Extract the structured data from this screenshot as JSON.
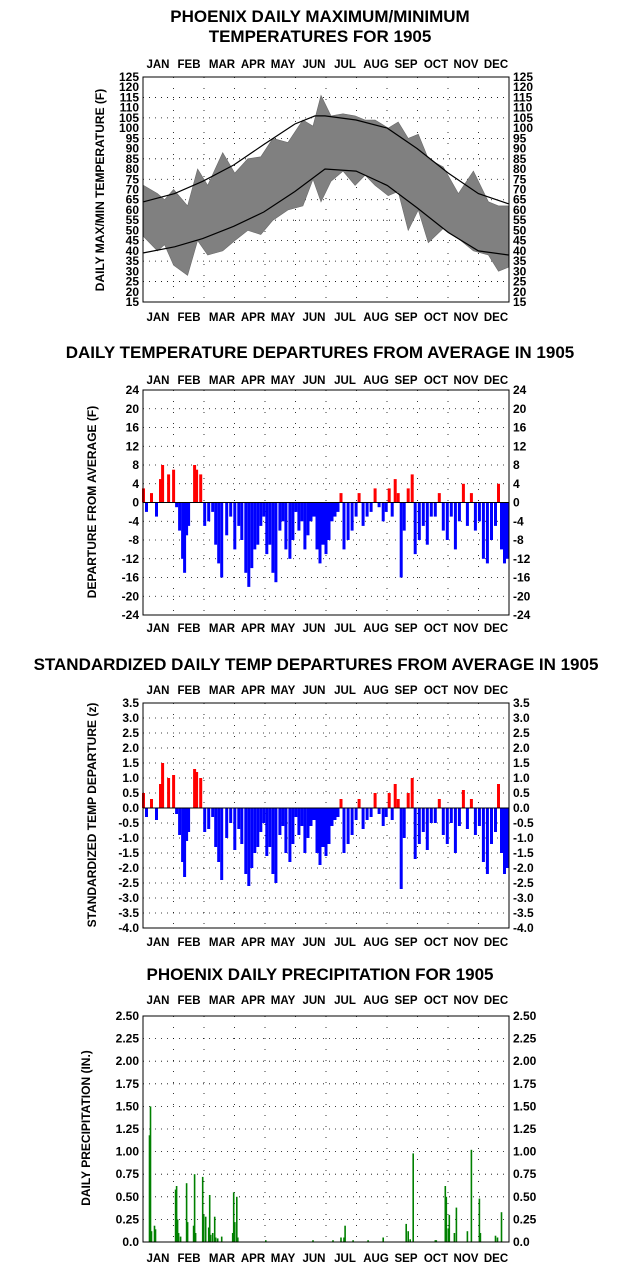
{
  "months": [
    "JAN",
    "FEB",
    "MAR",
    "APR",
    "MAY",
    "JUN",
    "JUL",
    "AUG",
    "SEP",
    "OCT",
    "NOV",
    "DEC"
  ],
  "chart_data": [
    {
      "type": "area",
      "title_lines": [
        "PHOENIX DAILY MAXIMUM/MINIMUM",
        "TEMPERATURES FOR 1905"
      ],
      "ylabel": "DAILY MAX/MIN TEMPERATURE (F)",
      "ylim": [
        15,
        125
      ],
      "yticks": [
        "15",
        "20",
        "25",
        "30",
        "35",
        "40",
        "45",
        "50",
        "55",
        "60",
        "65",
        "70",
        "75",
        "80",
        "85",
        "90",
        "95",
        "100",
        "105",
        "110",
        "115",
        "120",
        "125"
      ],
      "grid": "dotted",
      "series": [
        {
          "role": "observed_max",
          "color": "#808080",
          "x": [
            1,
            15,
            22,
            31,
            45,
            55,
            65,
            80,
            92,
            105,
            118,
            130,
            145,
            160,
            170,
            178,
            188,
            200,
            212,
            222,
            232,
            245,
            255,
            265,
            275,
            285,
            300,
            315,
            330,
            345,
            355,
            365
          ],
          "values": [
            72,
            68,
            65,
            70,
            62,
            80,
            72,
            88,
            78,
            85,
            86,
            95,
            93,
            104,
            101,
            116,
            106,
            107,
            106,
            104,
            104,
            100,
            103,
            95,
            97,
            85,
            81,
            68,
            79,
            64,
            62,
            62
          ]
        },
        {
          "role": "observed_min",
          "color": "#808080",
          "x": [
            1,
            15,
            22,
            31,
            45,
            55,
            65,
            80,
            92,
            105,
            118,
            130,
            145,
            160,
            170,
            178,
            188,
            200,
            212,
            222,
            232,
            245,
            255,
            265,
            275,
            285,
            300,
            315,
            330,
            345,
            355,
            365
          ],
          "values": [
            47,
            40,
            43,
            33,
            28,
            45,
            38,
            40,
            45,
            50,
            48,
            55,
            60,
            62,
            75,
            64,
            74,
            79,
            72,
            77,
            72,
            67,
            69,
            50,
            60,
            44,
            51,
            46,
            40,
            38,
            30,
            32
          ]
        },
        {
          "role": "normal_max",
          "color": "#000000",
          "x": [
            1,
            32,
            60,
            91,
            121,
            152,
            172,
            182,
            213,
            244,
            274,
            305,
            335,
            365
          ],
          "values": [
            64,
            68,
            74,
            82,
            92,
            102,
            106,
            106,
            104,
            100,
            90,
            78,
            68,
            63
          ]
        },
        {
          "role": "normal_min",
          "color": "#000000",
          "x": [
            1,
            32,
            60,
            91,
            121,
            152,
            182,
            213,
            244,
            274,
            305,
            335,
            365
          ],
          "values": [
            39,
            42,
            46,
            52,
            59,
            69,
            80,
            79,
            72,
            61,
            49,
            40,
            38
          ]
        }
      ]
    },
    {
      "type": "bar",
      "title_lines": [
        "DAILY TEMPERATURE DEPARTURES FROM AVERAGE IN 1905"
      ],
      "ylabel": "DEPARTURE FROM AVERAGE (F)",
      "ylim": [
        -24,
        24
      ],
      "yticks": [
        "-24",
        "-20",
        "-16",
        "-12",
        "-8",
        "-4",
        "0",
        "4",
        "8",
        "12",
        "16",
        "20",
        "24"
      ],
      "colors": {
        "positive": "#ff0000",
        "negative": "#0000ff"
      },
      "grid": "dotted",
      "x": [
        1,
        4,
        9,
        14,
        18,
        20,
        26,
        31,
        34,
        37,
        40,
        42,
        44,
        46,
        52,
        54,
        58,
        62,
        66,
        70,
        73,
        76,
        79,
        84,
        88,
        92,
        96,
        99,
        103,
        106,
        109,
        112,
        115,
        118,
        121,
        124,
        127,
        130,
        133,
        137,
        140,
        143,
        147,
        150,
        153,
        156,
        159,
        162,
        165,
        168,
        171,
        174,
        177,
        180,
        183,
        186,
        189,
        192,
        195,
        198,
        201,
        205,
        209,
        213,
        216,
        220,
        224,
        228,
        232,
        236,
        240,
        243,
        246,
        249,
        252,
        255,
        258,
        261,
        265,
        269,
        272,
        276,
        280,
        284,
        288,
        292,
        296,
        300,
        304,
        308,
        312,
        316,
        320,
        324,
        328,
        332,
        336,
        340,
        344,
        348,
        352,
        355,
        358,
        361,
        364
      ],
      "values": [
        3,
        -2,
        2,
        -3,
        5,
        8,
        6,
        7,
        -1,
        -6,
        -12,
        -15,
        -7,
        -5,
        8,
        7,
        6,
        -5,
        -4,
        -2,
        -9,
        -13,
        -16,
        -7,
        -3,
        -10,
        -5,
        -8,
        -15,
        -18,
        -14,
        -10,
        -9,
        -5,
        -3,
        -11,
        -9,
        -15,
        -17,
        -6,
        -4,
        -10,
        -12,
        -8,
        -2,
        -6,
        -4,
        -10,
        -7,
        -4,
        -3,
        -10,
        -13,
        -9,
        -11,
        -8,
        -4,
        -3,
        -2,
        2,
        -10,
        -8,
        -6,
        -3,
        2,
        -5,
        -3,
        -2,
        3,
        -1,
        -4,
        -2,
        3,
        -3,
        5,
        2,
        -16,
        -6,
        3,
        6,
        -11,
        -8,
        -5,
        -9,
        -3,
        -3,
        2,
        -6,
        -8,
        -3,
        -10,
        -4,
        4,
        -5,
        2,
        -6,
        -4,
        -12,
        -13,
        -8,
        -5,
        4,
        -10,
        -13,
        -12
      ]
    },
    {
      "type": "bar",
      "title_lines": [
        "STANDARDIZED DAILY TEMP DEPARTURES FROM AVERAGE IN 1905"
      ],
      "ylabel": "STANDARDIZED TEMP DEPARTURE (z)",
      "ylim": [
        -4.0,
        3.5
      ],
      "yticks": [
        "-4.0",
        "-3.5",
        "-3.0",
        "-2.5",
        "-2.0",
        "-1.5",
        "-1.0",
        "-0.5",
        "0.0",
        "0.5",
        "1.0",
        "1.5",
        "2.0",
        "2.5",
        "3.0",
        "3.5"
      ],
      "colors": {
        "positive": "#ff0000",
        "negative": "#0000ff"
      },
      "grid": "dotted",
      "x": [
        1,
        4,
        9,
        14,
        18,
        20,
        26,
        31,
        34,
        37,
        40,
        42,
        44,
        46,
        52,
        54,
        58,
        62,
        66,
        70,
        73,
        76,
        79,
        84,
        88,
        92,
        96,
        99,
        103,
        106,
        109,
        112,
        115,
        118,
        121,
        124,
        127,
        130,
        133,
        137,
        140,
        143,
        147,
        150,
        153,
        156,
        159,
        162,
        165,
        168,
        171,
        174,
        177,
        180,
        183,
        186,
        189,
        192,
        195,
        198,
        201,
        205,
        209,
        213,
        216,
        220,
        224,
        228,
        232,
        236,
        240,
        243,
        246,
        249,
        252,
        255,
        258,
        261,
        265,
        269,
        272,
        276,
        280,
        284,
        288,
        292,
        296,
        300,
        304,
        308,
        312,
        316,
        320,
        324,
        328,
        332,
        336,
        340,
        344,
        348,
        352,
        355,
        358,
        361,
        364
      ],
      "values": [
        0.5,
        -0.3,
        0.3,
        -0.4,
        0.8,
        1.5,
        1.0,
        1.1,
        -0.2,
        -0.9,
        -1.8,
        -2.3,
        -1.1,
        -0.8,
        1.3,
        1.2,
        1.0,
        -0.8,
        -0.7,
        -0.3,
        -1.3,
        -1.8,
        -2.4,
        -1.0,
        -0.5,
        -1.4,
        -0.7,
        -1.2,
        -2.2,
        -2.6,
        -2.0,
        -1.5,
        -1.3,
        -0.8,
        -0.5,
        -1.6,
        -1.3,
        -2.2,
        -2.5,
        -0.9,
        -0.6,
        -1.5,
        -1.8,
        -1.2,
        -0.3,
        -0.9,
        -0.6,
        -1.5,
        -1.0,
        -0.6,
        -0.4,
        -1.5,
        -1.9,
        -1.3,
        -1.6,
        -1.2,
        -0.6,
        -0.4,
        -0.3,
        0.3,
        -1.5,
        -1.2,
        -0.9,
        -0.4,
        0.3,
        -0.7,
        -0.4,
        -0.3,
        0.5,
        -0.2,
        -0.6,
        -0.3,
        0.5,
        -0.4,
        0.8,
        0.3,
        -2.7,
        -1.0,
        0.5,
        1.0,
        -1.7,
        -1.2,
        -0.8,
        -1.4,
        -0.5,
        -0.5,
        0.3,
        -0.9,
        -1.2,
        -0.5,
        -1.5,
        -0.6,
        0.6,
        -0.7,
        0.3,
        -0.9,
        -0.6,
        -1.8,
        -2.2,
        -1.2,
        -0.8,
        0.8,
        -1.5,
        -2.2,
        -2.0
      ]
    },
    {
      "type": "bar",
      "title_lines": [
        "PHOENIX DAILY PRECIPITATION FOR 1905"
      ],
      "ylabel": "DAILY PRECIPITATION (IN.)",
      "ylim": [
        0,
        2.5
      ],
      "yticks": [
        "0.0",
        "0.25",
        "0.50",
        "0.75",
        "1.00",
        "1.25",
        "1.50",
        "1.75",
        "2.00",
        "2.25",
        "2.50"
      ],
      "colors": {
        "bar": "#008000"
      },
      "grid": "dotted",
      "x": [
        7,
        8,
        9,
        12,
        13,
        33,
        34,
        35,
        36,
        38,
        44,
        45,
        51,
        52,
        53,
        60,
        61,
        63,
        66,
        67,
        68,
        70,
        72,
        73,
        75,
        79,
        90,
        91,
        92,
        94,
        95,
        123,
        170,
        190,
        198,
        201,
        202,
        210,
        225,
        240,
        263,
        265,
        267,
        270,
        292,
        293,
        302,
        303,
        305,
        306,
        311,
        313,
        324,
        328,
        336,
        337,
        352,
        354,
        358
      ],
      "values": [
        1.18,
        1.5,
        0.12,
        0.18,
        0.14,
        0.58,
        0.62,
        0.25,
        0.1,
        0.06,
        0.65,
        0.22,
        0.18,
        0.75,
        0.1,
        0.72,
        0.3,
        0.28,
        0.16,
        0.52,
        0.08,
        0.1,
        0.28,
        0.05,
        0.04,
        0.06,
        0.1,
        0.55,
        0.22,
        0.5,
        0.05,
        0.02,
        0.02,
        0.02,
        0.05,
        0.05,
        0.18,
        0.02,
        0.02,
        0.05,
        0.2,
        0.12,
        0.03,
        0.98,
        0.02,
        0.02,
        0.62,
        0.5,
        0.15,
        0.3,
        0.1,
        0.38,
        0.12,
        1.02,
        0.48,
        0.1,
        0.07,
        0.05,
        0.33
      ]
    }
  ]
}
